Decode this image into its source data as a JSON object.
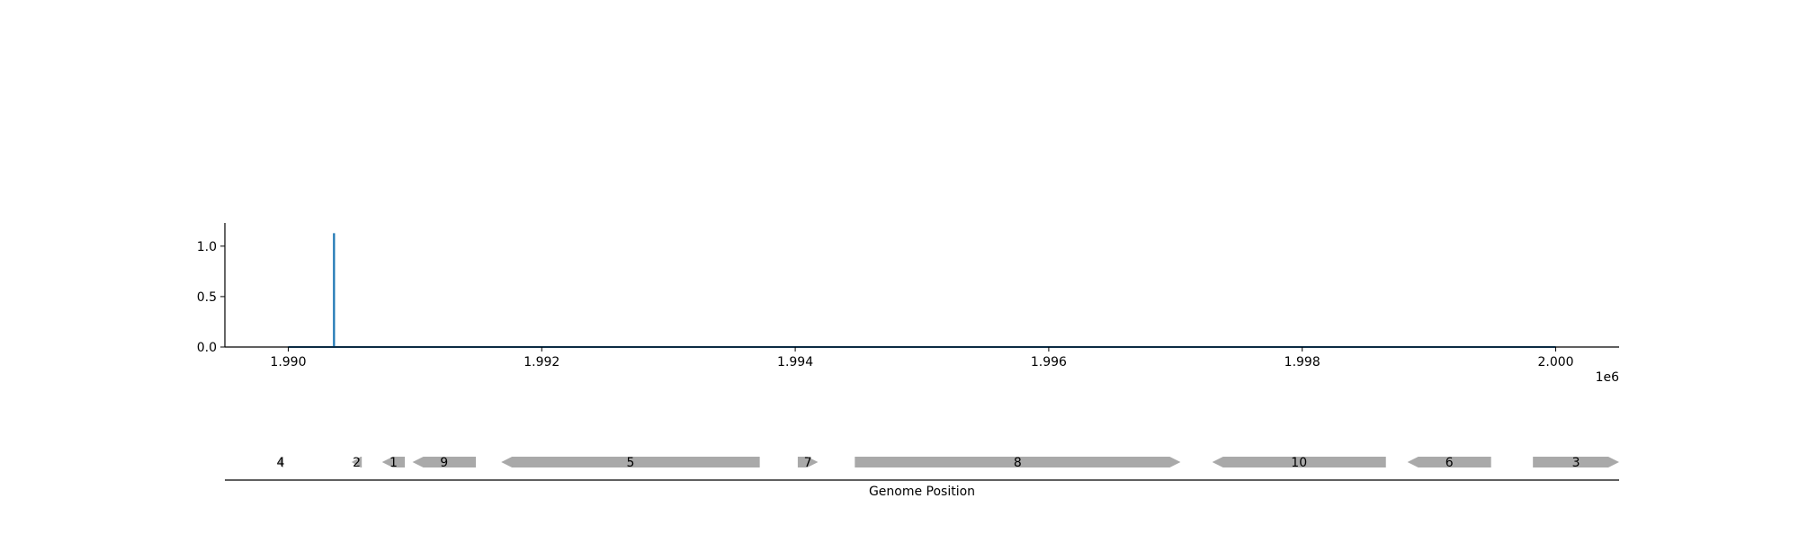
{
  "chart_data": [
    {
      "type": "line",
      "title": "",
      "xlabel": "",
      "ylabel": "",
      "x_offset_label": "1e6",
      "xlim": [
        1989500,
        2000500
      ],
      "ylim": [
        0.0,
        1.23
      ],
      "x_ticks": [
        1990000,
        1992000,
        1994000,
        1996000,
        1998000,
        2000000
      ],
      "x_tick_labels": [
        "1.990",
        "1.992",
        "1.994",
        "1.996",
        "1.998",
        "2.000"
      ],
      "y_ticks": [
        0.0,
        0.5,
        1.0
      ],
      "y_tick_labels": [
        "0.0",
        "0.5",
        "1.0"
      ],
      "grid": false,
      "series": [
        {
          "color": "#1f77b4",
          "points": [
            [
              1990000,
              0.0
            ],
            [
              1990360,
              0.0
            ],
            [
              1990360,
              1.12
            ],
            [
              1990362,
              1.12
            ],
            [
              1990362,
              0.0
            ],
            [
              2000000,
              0.0
            ]
          ]
        }
      ]
    },
    {
      "type": "gene-track",
      "xlabel": "Genome Position",
      "xlim": [
        1989500,
        2000500
      ],
      "feature_color": "#a9a9a9",
      "features": [
        {
          "label": "4",
          "start": 1989920,
          "end": 1989960,
          "strand": -1
        },
        {
          "label": "2",
          "start": 1990500,
          "end": 1990580,
          "strand": -1
        },
        {
          "label": "1",
          "start": 1990740,
          "end": 1990920,
          "strand": -1
        },
        {
          "label": "9",
          "start": 1990980,
          "end": 1991480,
          "strand": -1
        },
        {
          "label": "5",
          "start": 1991680,
          "end": 1993720,
          "strand": -1
        },
        {
          "label": "7",
          "start": 1994020,
          "end": 1994180,
          "strand": 1
        },
        {
          "label": "8",
          "start": 1994470,
          "end": 1997040,
          "strand": 1
        },
        {
          "label": "10",
          "start": 1997290,
          "end": 1998660,
          "strand": -1
        },
        {
          "label": "6",
          "start": 1998830,
          "end": 1999490,
          "strand": -1
        },
        {
          "label": "3",
          "start": 1999820,
          "end": 2000500,
          "strand": 1
        }
      ]
    }
  ]
}
